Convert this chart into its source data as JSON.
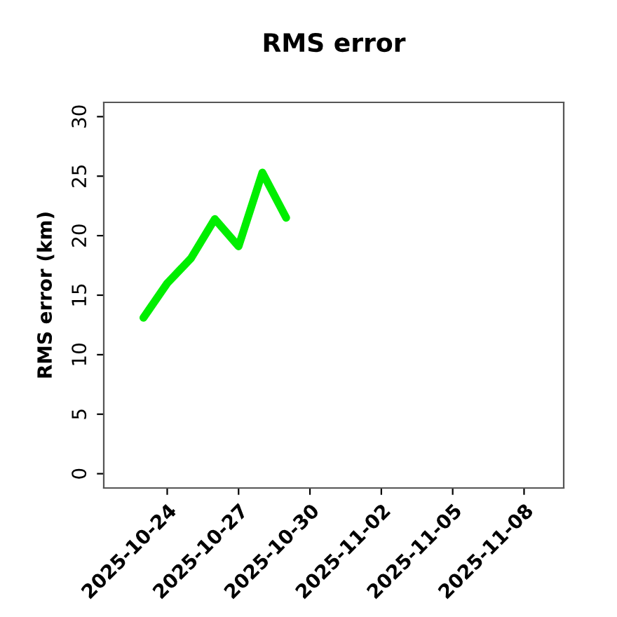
{
  "chart_data": {
    "type": "line",
    "title": "RMS error",
    "ylabel": "RMS error (km)",
    "x": [
      "2025-10-23",
      "2025-10-24",
      "2025-10-25",
      "2025-10-26",
      "2025-10-27",
      "2025-10-28",
      "2025-10-29"
    ],
    "series": [
      {
        "color": "#00ee00",
        "values": [
          13.1,
          16.0,
          18.1,
          21.4,
          19.1,
          25.3,
          21.5
        ]
      }
    ],
    "xlim": [
      "2025-10-21T08:00",
      "2025-11-09T16:00"
    ],
    "xticks": [
      "2025-10-24",
      "2025-10-27",
      "2025-10-30",
      "2025-11-02",
      "2025-11-05",
      "2025-11-08"
    ],
    "ylim": [
      -1.2,
      31.2
    ],
    "yticks": [
      0,
      5,
      10,
      15,
      20,
      25,
      30
    ],
    "grid": false,
    "legend": false,
    "marker": "none",
    "line_style": "solid"
  }
}
